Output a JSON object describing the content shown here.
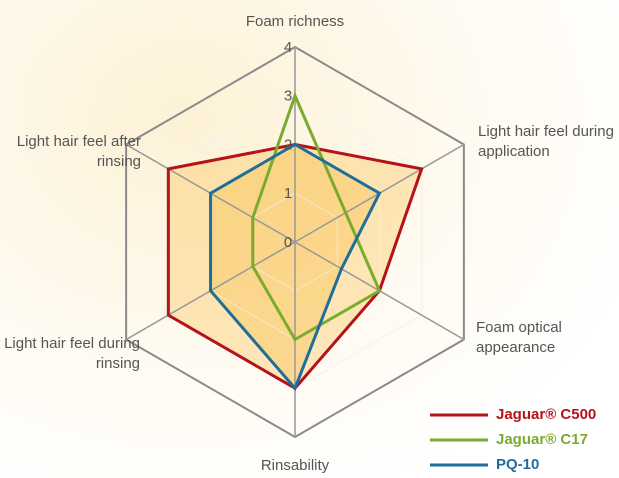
{
  "chart_data": {
    "type": "radar",
    "categories": [
      "Foam richness",
      "Light hair feel during application",
      "Foam optical appearance",
      "Rinsability",
      "Light hair feel during rinsing",
      "Light hair feel after rinsing"
    ],
    "rlim": [
      0,
      4
    ],
    "rticks": [
      0,
      1,
      2,
      3,
      4
    ],
    "grid": true,
    "legend": "lower right",
    "series": [
      {
        "name": "Jaguar® C500",
        "color": "#b5121b",
        "fill": true,
        "values": [
          2,
          3,
          2,
          3,
          3,
          3
        ]
      },
      {
        "name": "Jaguar® C17",
        "color": "#7aab2e",
        "fill": false,
        "values": [
          3,
          1.2,
          2,
          2,
          1,
          1
        ]
      },
      {
        "name": "PQ-10",
        "color": "#1f6e9a",
        "fill": true,
        "values": [
          2,
          2,
          1.1,
          3,
          2,
          2
        ]
      }
    ]
  }
}
